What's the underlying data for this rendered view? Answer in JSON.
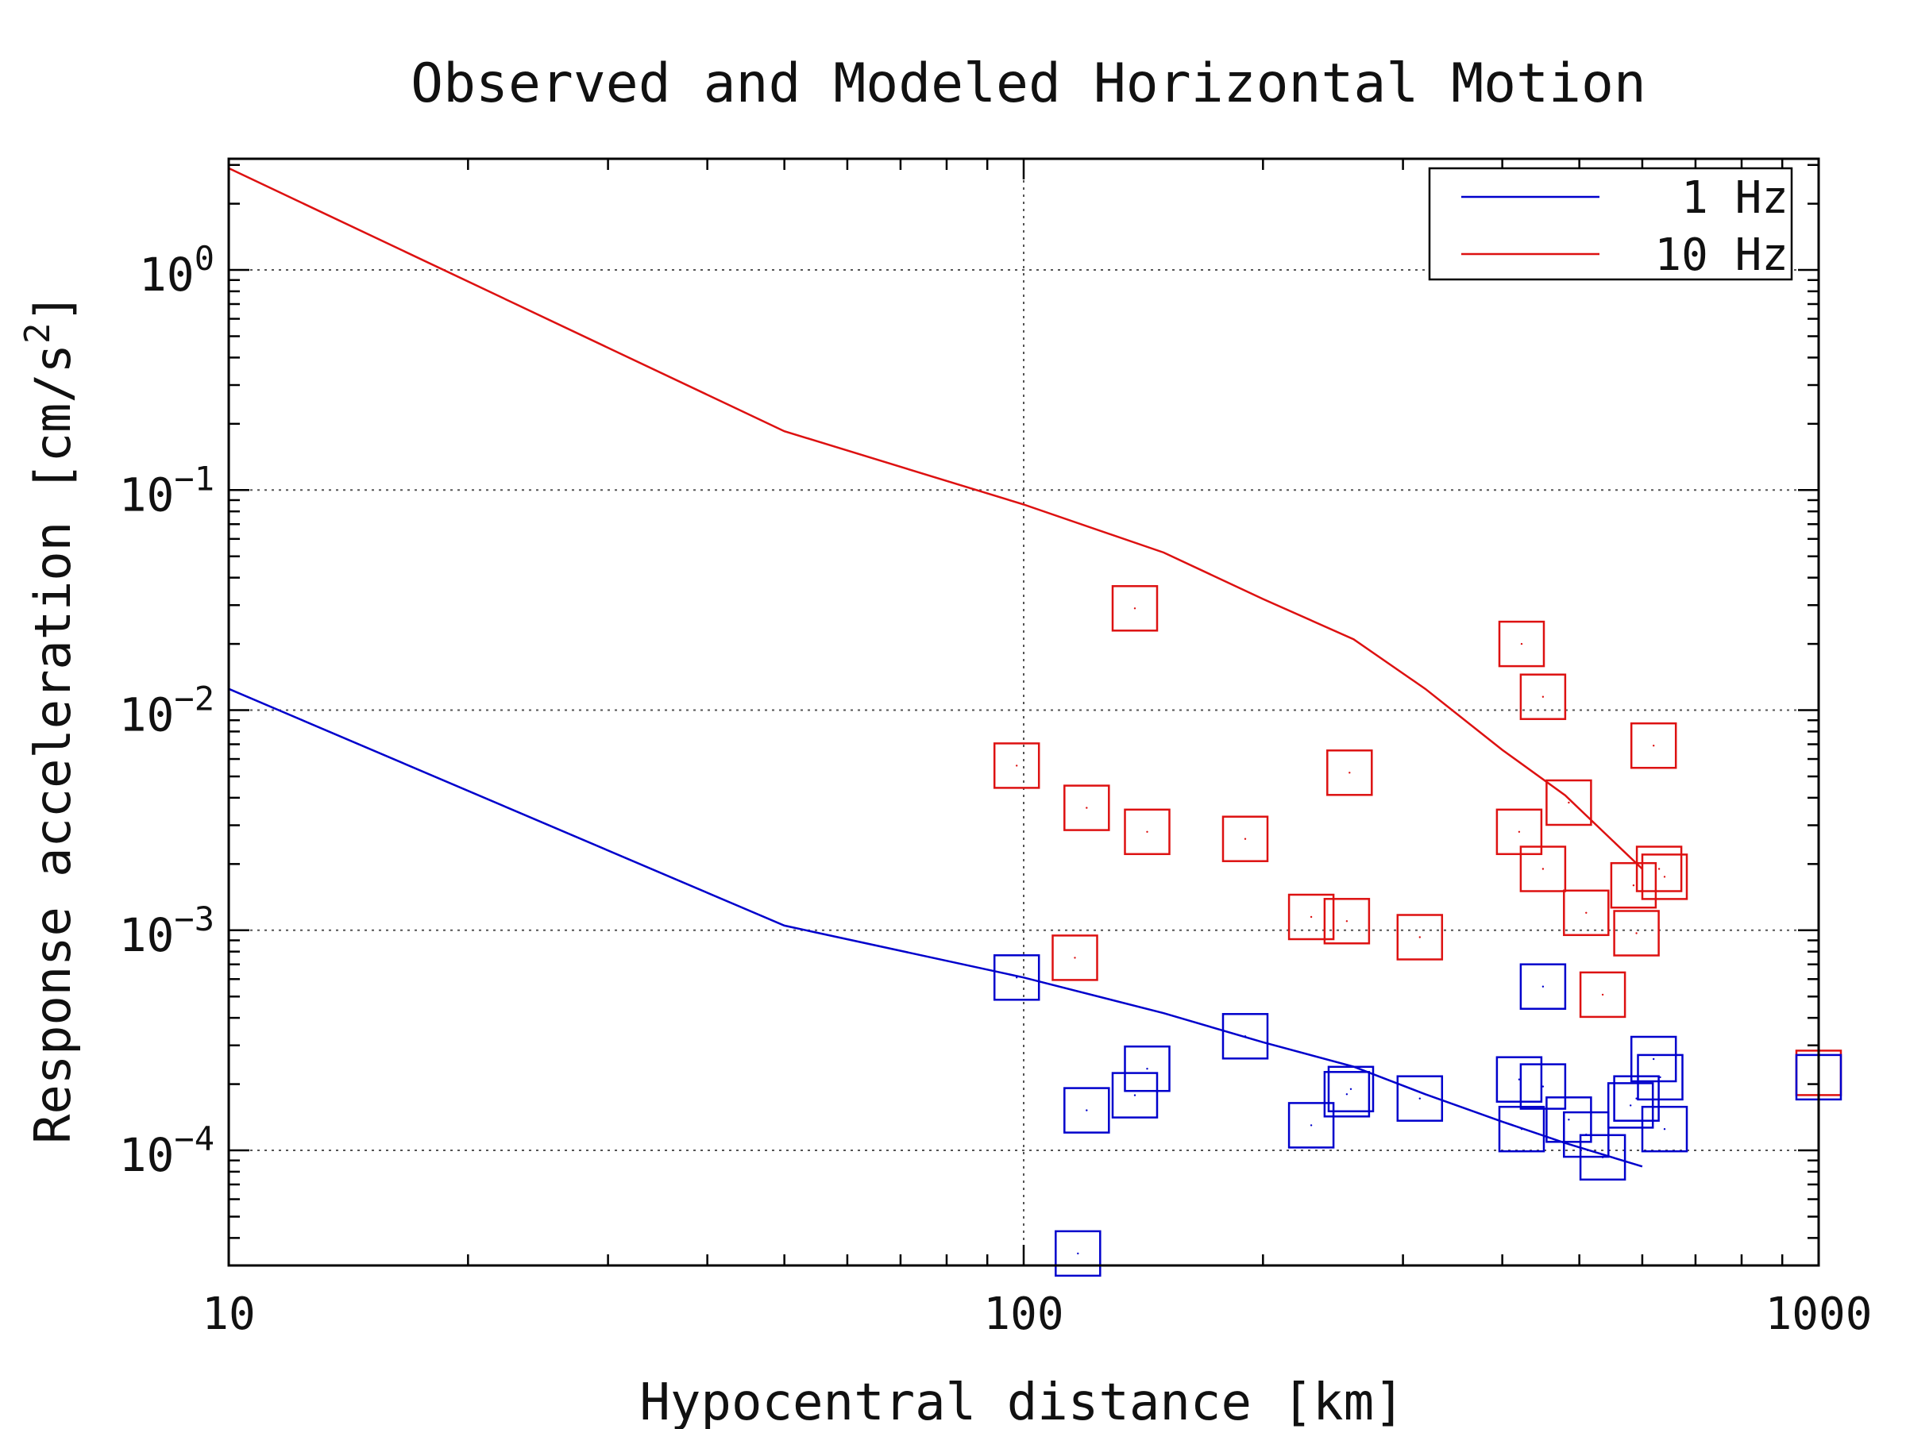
{
  "chart_data": {
    "type": "scatter",
    "title": "Observed and Modeled Horizontal Motion",
    "xlabel": "Hypocentral distance [km]",
    "ylabel": "Response acceleration [cm/s",
    "ylabel_sup": "2",
    "ylabel_end": "]",
    "x_scale": "log",
    "y_scale": "log",
    "xlim": [
      10,
      1000
    ],
    "ylim": [
      3e-05,
      3.2
    ],
    "x_ticks": [
      {
        "value": 10,
        "label": "10"
      },
      {
        "value": 100,
        "label": "100"
      },
      {
        "value": 1000,
        "label": "1000"
      }
    ],
    "y_ticks": [
      {
        "value": 1,
        "base": "10",
        "exp": "0"
      },
      {
        "value": 0.1,
        "base": "10",
        "exp": "−1"
      },
      {
        "value": 0.01,
        "base": "10",
        "exp": "−2"
      },
      {
        "value": 0.001,
        "base": "10",
        "exp": "−3"
      },
      {
        "value": 0.0001,
        "base": "10",
        "exp": "−4"
      }
    ],
    "grid": true,
    "legend_position": "top-right",
    "legend": [
      {
        "label": "1 Hz",
        "color": "#0000cc"
      },
      {
        "label": "10 Hz",
        "color": "#dd1111"
      }
    ],
    "model_lines": [
      {
        "color": "#dd1111",
        "x": [
          10,
          50,
          100,
          150,
          200,
          260,
          320,
          400,
          480,
          600
        ],
        "y": [
          2.9,
          0.185,
          0.086,
          0.052,
          0.032,
          0.021,
          0.0125,
          0.0066,
          0.0041,
          0.0019
        ]
      },
      {
        "color": "#0000cc",
        "x": [
          10,
          50,
          100,
          150,
          200,
          260,
          320,
          400,
          480,
          600
        ],
        "y": [
          0.0125,
          0.00105,
          0.00061,
          0.00042,
          0.00031,
          0.00024,
          0.00018,
          0.000135,
          0.000108,
          8.45e-05
        ]
      }
    ],
    "observed": [
      {
        "color": "#dd1111",
        "points": [
          [
            98,
            0.0056
          ],
          [
            116,
            0.00075
          ],
          [
            120,
            0.0036
          ],
          [
            138,
            0.029
          ],
          [
            143,
            0.0028
          ],
          [
            190,
            0.0026
          ],
          [
            230,
            0.00115
          ],
          [
            255,
            0.0011
          ],
          [
            257,
            0.0052
          ],
          [
            315,
            0.00093
          ],
          [
            420,
            0.0028
          ],
          [
            423,
            0.02
          ],
          [
            450,
            0.0115
          ],
          [
            450,
            0.0019
          ],
          [
            485,
            0.0038
          ],
          [
            510,
            0.0012
          ],
          [
            535,
            0.00051
          ],
          [
            590,
            0.00097
          ],
          [
            585,
            0.0016
          ],
          [
            620,
            0.0069
          ],
          [
            630,
            0.0019
          ],
          [
            640,
            0.00175
          ],
          [
            1000,
            0.000225
          ]
        ]
      },
      {
        "color": "#0000cc",
        "points": [
          [
            98,
            0.00061
          ],
          [
            117,
            3.4e-05
          ],
          [
            120,
            0.000152
          ],
          [
            138,
            0.000178
          ],
          [
            143,
            0.000235
          ],
          [
            190,
            0.00033
          ],
          [
            230,
            0.00013
          ],
          [
            255,
            0.00018
          ],
          [
            258,
            0.00019
          ],
          [
            315,
            0.000172
          ],
          [
            420,
            0.00021
          ],
          [
            423,
            0.000125
          ],
          [
            450,
            0.000555
          ],
          [
            450,
            0.000195
          ],
          [
            485,
            0.000138
          ],
          [
            510,
            0.000118
          ],
          [
            535,
            9.3e-05
          ],
          [
            580,
            0.00016
          ],
          [
            590,
            0.000172
          ],
          [
            620,
            0.00026
          ],
          [
            632,
            0.000215
          ],
          [
            640,
            0.000125
          ],
          [
            1000,
            0.000215
          ]
        ]
      }
    ]
  }
}
